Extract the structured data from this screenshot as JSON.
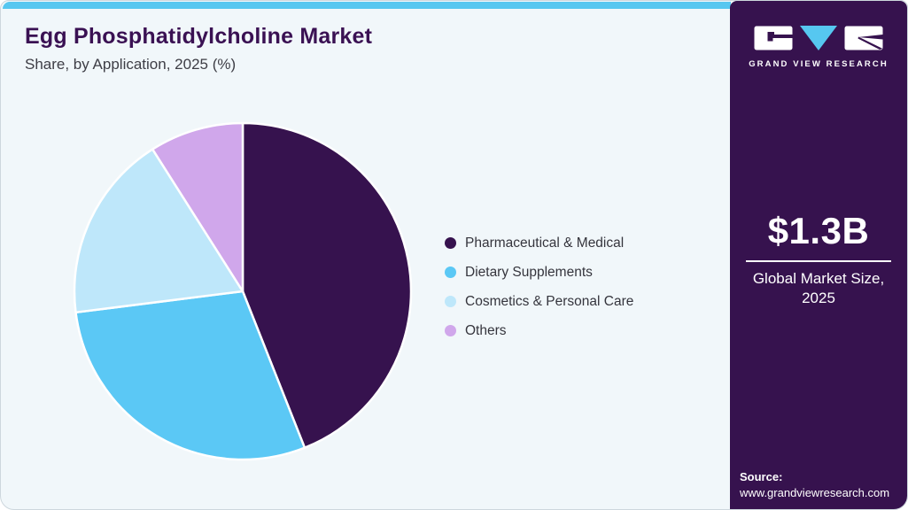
{
  "header": {
    "title": "Egg Phosphatidylcholine Market",
    "subtitle": "Share, by Application, 2025 (%)"
  },
  "chart_data": {
    "type": "pie",
    "title": "Egg Phosphatidylcholine Market Share, by Application, 2025 (%)",
    "categories": [
      "Pharmaceutical & Medical",
      "Dietary Supplements",
      "Cosmetics & Personal Care",
      "Others"
    ],
    "values": [
      44,
      29,
      18,
      9
    ],
    "unit": "%",
    "colors": [
      "#36124E",
      "#5BC8F5",
      "#BEE7FA",
      "#D0A7EB"
    ],
    "start_angle_deg": 0,
    "direction": "clockwise",
    "legend_position": "right",
    "slice_border_color": "#FFFFFF"
  },
  "sidebar": {
    "logo_wordmark": "GRAND VIEW RESEARCH",
    "market_size_value": "$1.3B",
    "market_size_label_line1": "Global Market Size,",
    "market_size_label_line2": "2025",
    "source_label": "Source:",
    "source_url": "www.grandviewresearch.com"
  },
  "colors": {
    "accent_bar": "#57C7F0",
    "sidebar_background": "#36124E",
    "page_background": "#F1F7FA",
    "title_text": "#3A1153",
    "body_text": "#3E3E46",
    "logo_triangle": "#56C7F0"
  }
}
